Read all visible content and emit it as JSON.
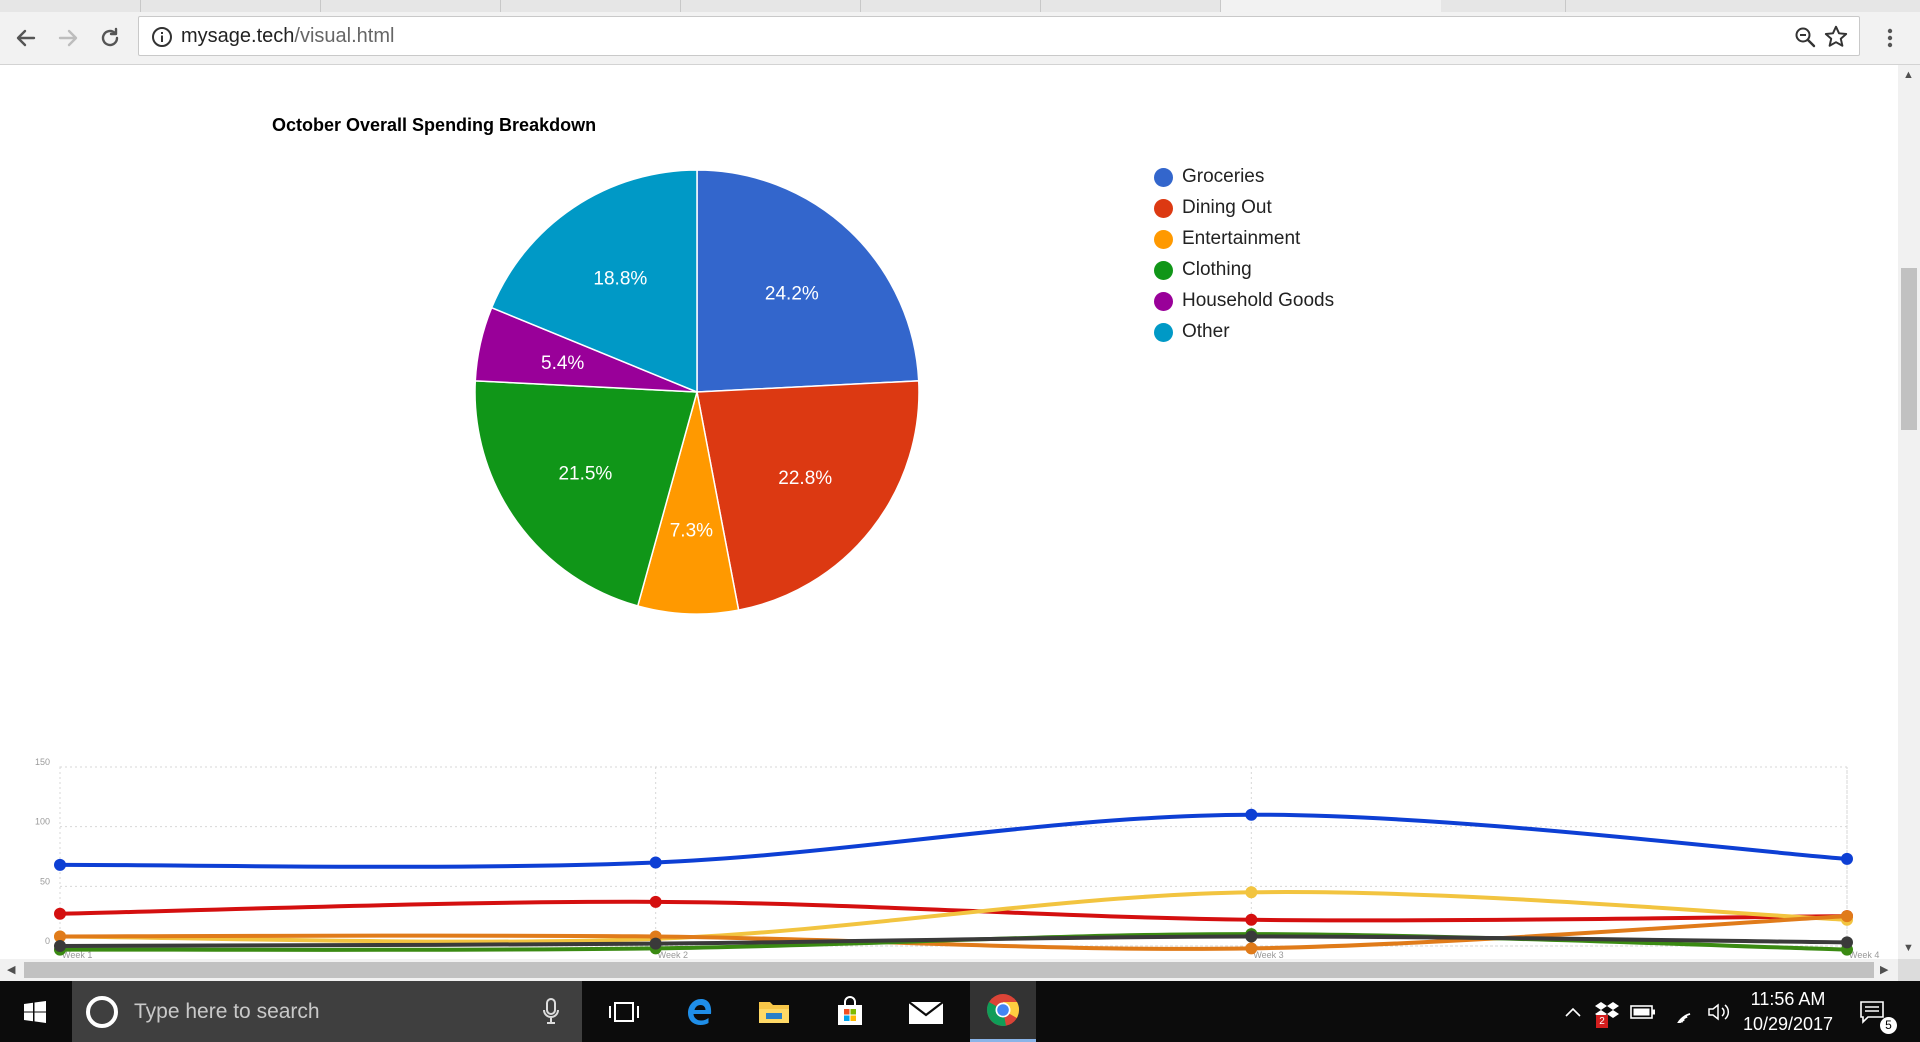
{
  "browser": {
    "url_host": "mysage.tech",
    "url_path": "/visual.html"
  },
  "page": {
    "pie_chart_title": "October Overall Spending Breakdown"
  },
  "chart_data": [
    {
      "type": "pie",
      "title": "October Overall Spending Breakdown",
      "legend_position": "right",
      "slices": [
        {
          "label": "Groceries",
          "value": 24.2,
          "display": "24.2%",
          "color": "#3366cc"
        },
        {
          "label": "Dining Out",
          "value": 22.8,
          "display": "22.8%",
          "color": "#dc3912"
        },
        {
          "label": "Entertainment",
          "value": 7.3,
          "display": "7.3%",
          "color": "#ff9900"
        },
        {
          "label": "Clothing",
          "value": 21.5,
          "display": "21.5%",
          "color": "#109618"
        },
        {
          "label": "Household Goods",
          "value": 5.4,
          "display": "5.4%",
          "color": "#990099"
        },
        {
          "label": "Other",
          "value": 18.8,
          "display": "18.8%",
          "color": "#0099c6"
        }
      ]
    },
    {
      "type": "line",
      "categories": [
        "Week 1",
        "Week 2",
        "Week 3",
        "Week 4"
      ],
      "ylim": [
        0,
        150
      ],
      "yticks": [
        "150",
        "100",
        "50",
        "0"
      ],
      "ytick_values": [
        150,
        100,
        50,
        0
      ],
      "grid": true,
      "series": [
        {
          "color": "#0d3fd4",
          "values": [
            68,
            70,
            110,
            73
          ]
        },
        {
          "color": "#d40f0f",
          "values": [
            27,
            37,
            22,
            25
          ]
        },
        {
          "color": "#f2c440",
          "values": [
            8,
            6,
            45,
            22
          ]
        },
        {
          "color": "#e07b1a",
          "values": [
            8,
            8,
            -2,
            25
          ]
        },
        {
          "color": "#3a8a12",
          "values": [
            -3,
            -2,
            10,
            -3
          ]
        },
        {
          "color": "#3a3a3a",
          "values": [
            0,
            2,
            8,
            3
          ]
        }
      ]
    }
  ],
  "taskbar": {
    "search_placeholder": "Type here to search",
    "time": "11:56 AM",
    "date": "10/29/2017",
    "notification_count": "5",
    "dropbox_badge": "2"
  }
}
